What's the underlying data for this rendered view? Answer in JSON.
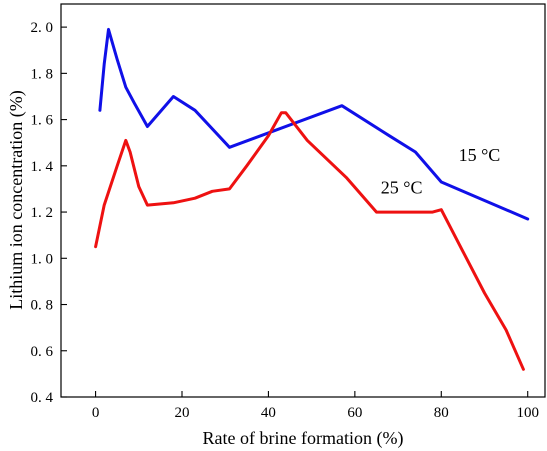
{
  "chart_data": {
    "type": "line",
    "title": "",
    "xlabel": "Rate of brine formation (%)",
    "ylabel": "Lithium ion concentration (%)",
    "xlim": [
      -8,
      104
    ],
    "ylim": [
      0.4,
      2.1
    ],
    "xticks": [
      0,
      20,
      40,
      60,
      80,
      100
    ],
    "yticks": [
      0.4,
      0.6,
      0.8,
      1.0,
      1.2,
      1.4,
      1.6,
      1.8,
      2.0
    ],
    "ytick_labels": [
      "0. 4",
      "0. 6",
      "0. 8",
      "1. 0",
      "1. 2",
      "1. 4",
      "1. 6",
      "1. 8",
      "2. 0"
    ],
    "grid": false,
    "legend": "none",
    "series": [
      {
        "name": "15 °C",
        "color": "#1010e8",
        "x": [
          1,
          2,
          3,
          5,
          7,
          9,
          12,
          18,
          23,
          31,
          57,
          68,
          74,
          80,
          95,
          100
        ],
        "y": [
          1.64,
          1.84,
          1.99,
          1.86,
          1.74,
          1.67,
          1.57,
          1.7,
          1.64,
          1.48,
          1.66,
          1.53,
          1.46,
          1.33,
          1.21,
          1.17
        ]
      },
      {
        "name": "25 °C",
        "color": "#ee1111",
        "x": [
          0,
          2,
          5,
          7,
          8,
          10,
          12,
          18,
          23,
          27,
          31,
          35,
          40,
          43,
          44,
          49,
          58,
          65,
          72,
          78,
          80,
          85,
          90,
          95,
          99
        ],
        "y": [
          1.05,
          1.23,
          1.4,
          1.51,
          1.46,
          1.31,
          1.23,
          1.24,
          1.26,
          1.29,
          1.3,
          1.4,
          1.53,
          1.63,
          1.63,
          1.51,
          1.35,
          1.2,
          1.2,
          1.2,
          1.21,
          1.03,
          0.85,
          0.69,
          0.52
        ]
      }
    ],
    "annotations": [
      {
        "text": "15 °C",
        "x": 84,
        "y": 1.42
      },
      {
        "text": "25 °C",
        "x": 66,
        "y": 1.28
      }
    ]
  }
}
